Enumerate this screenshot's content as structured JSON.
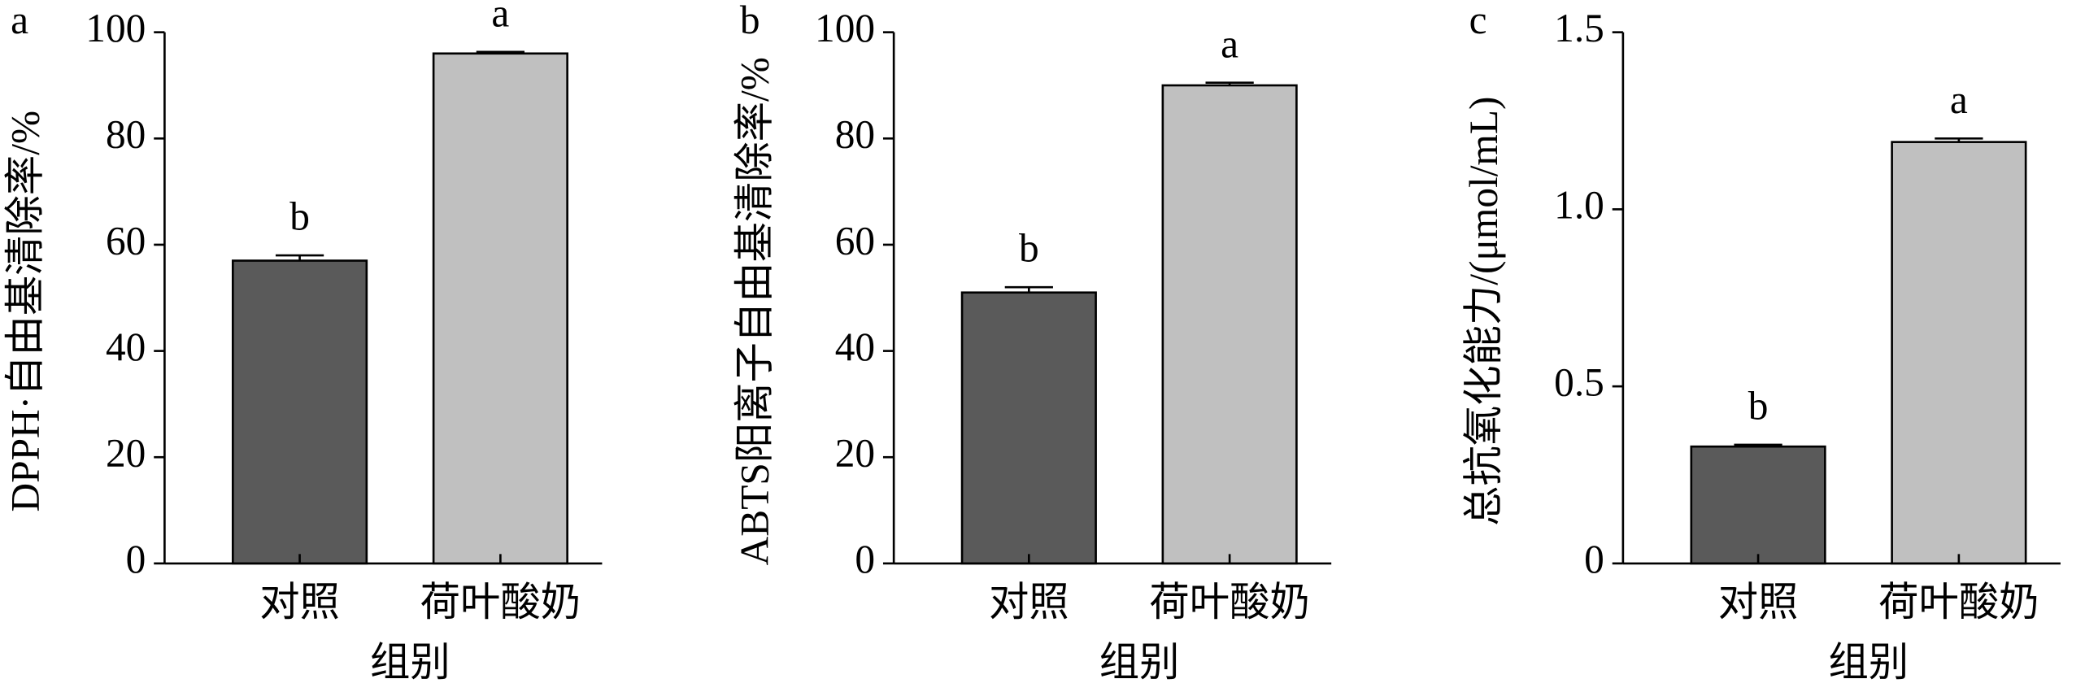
{
  "chart_data": [
    {
      "type": "bar",
      "panel_label": "a",
      "y_label": "DPPH·自由基清除率/%",
      "x_label": "组别",
      "categories": [
        "对照",
        "荷叶酸奶"
      ],
      "values": [
        57,
        96
      ],
      "errors": [
        1,
        0.3
      ],
      "annotations": [
        "b",
        "a"
      ],
      "colors": [
        "#5a5a5a",
        "#c0c0c0"
      ],
      "ylim": [
        0,
        100
      ],
      "yticks": [
        0,
        20,
        40,
        60,
        80,
        100
      ]
    },
    {
      "type": "bar",
      "panel_label": "b",
      "y_label": "ABTS阳离子自由基清除率/%",
      "x_label": "组别",
      "categories": [
        "对照",
        "荷叶酸奶"
      ],
      "values": [
        51,
        90
      ],
      "errors": [
        1,
        0.5
      ],
      "annotations": [
        "b",
        "a"
      ],
      "colors": [
        "#5a5a5a",
        "#c0c0c0"
      ],
      "ylim": [
        0,
        100
      ],
      "yticks": [
        0,
        20,
        40,
        60,
        80,
        100
      ]
    },
    {
      "type": "bar",
      "panel_label": "c",
      "y_label": "总抗氧化能力/(μmol/mL)",
      "x_label": "组别",
      "categories": [
        "对照",
        "荷叶酸奶"
      ],
      "values": [
        0.33,
        1.19
      ],
      "errors": [
        0.005,
        0.01
      ],
      "annotations": [
        "b",
        "a"
      ],
      "colors": [
        "#5a5a5a",
        "#c0c0c0"
      ],
      "ylim": [
        0,
        1.5
      ],
      "yticks": [
        0,
        0.5,
        {
          "value": 1,
          "label": "1.0"
        },
        1.5
      ]
    }
  ]
}
